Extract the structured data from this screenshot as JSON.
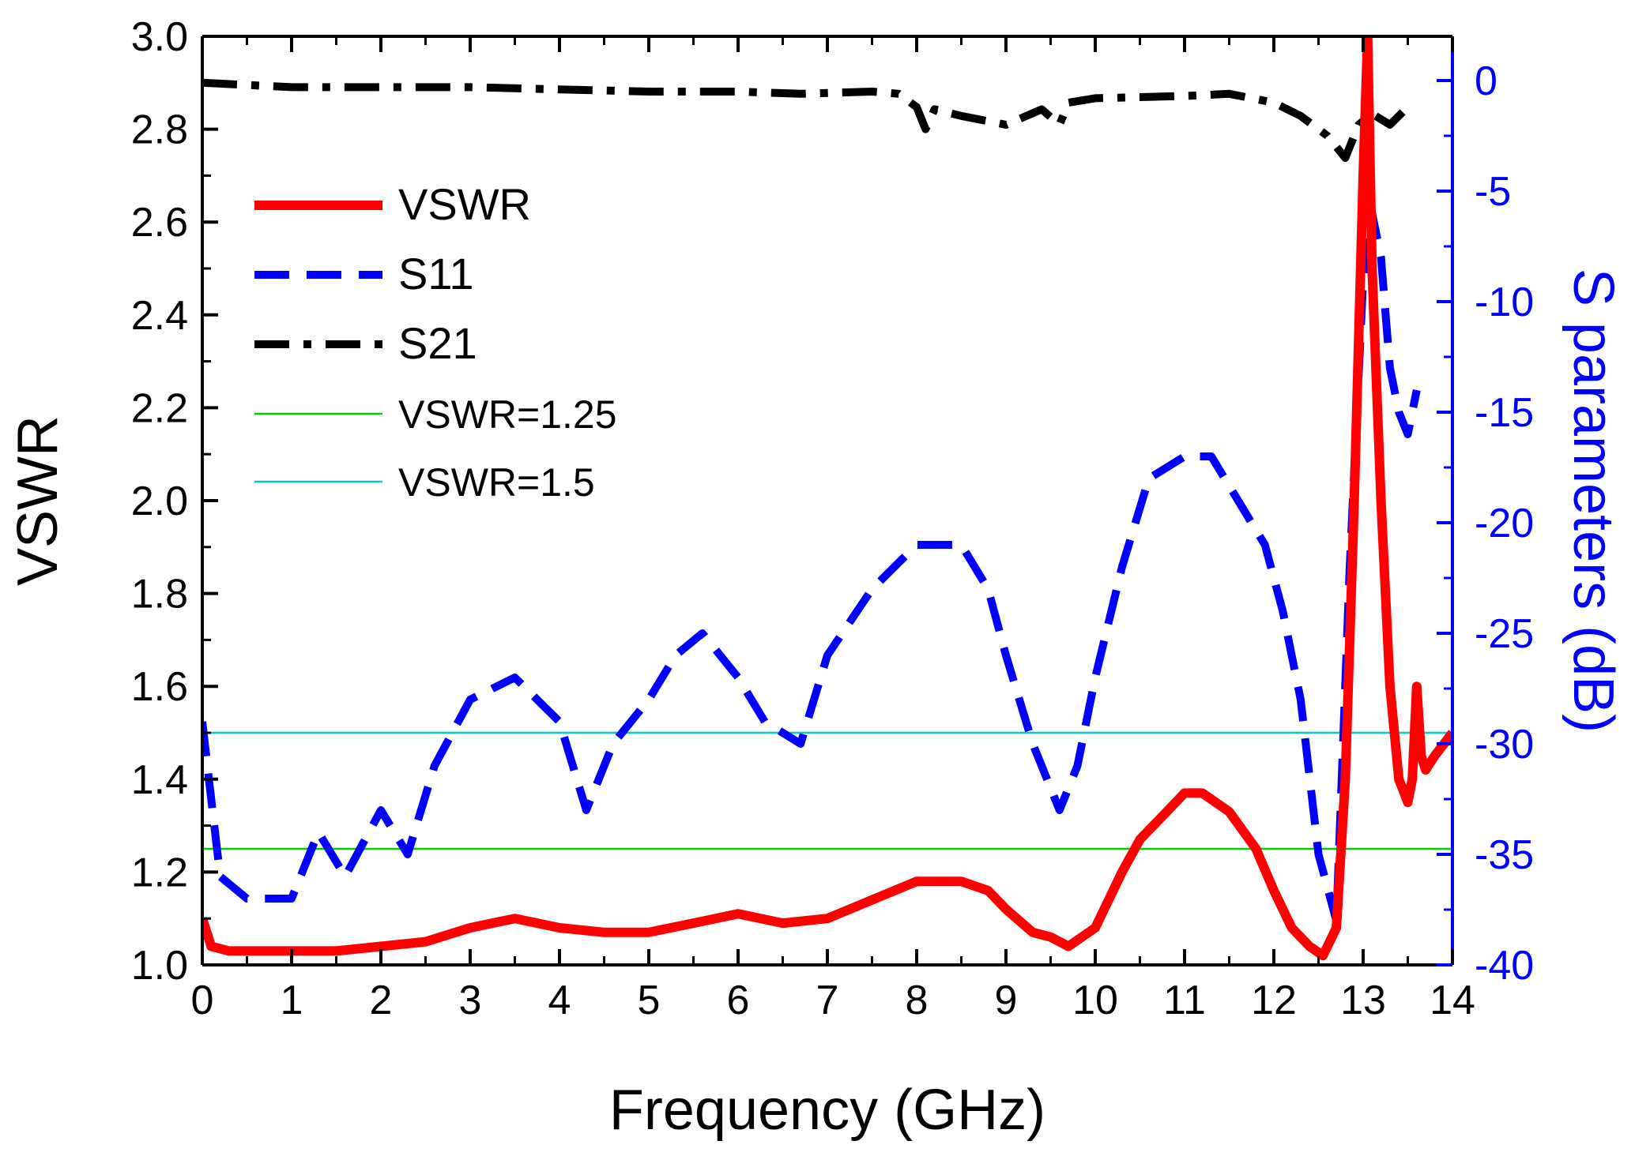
{
  "chart_data": {
    "type": "line",
    "title": "",
    "xlabel": "Frequency (GHz)",
    "ylabel": "VSWR",
    "ylabel_right": "S parameters (dB)",
    "xlim": [
      0,
      14
    ],
    "ylim": [
      1.0,
      3.0
    ],
    "ylim_right": [
      -40,
      2
    ],
    "x_ticks": [
      "0",
      "1",
      "2",
      "3",
      "4",
      "5",
      "6",
      "7",
      "8",
      "9",
      "10",
      "11",
      "12",
      "13",
      "14"
    ],
    "y_ticks": [
      "1.0",
      "1.2",
      "1.4",
      "1.6",
      "1.8",
      "2.0",
      "2.2",
      "2.4",
      "2.6",
      "2.8",
      "3.0"
    ],
    "y_right_ticks": [
      "0",
      "-5",
      "-10",
      "-15",
      "-20",
      "-25",
      "-30",
      "-35",
      "-40"
    ],
    "grid": false,
    "legend_position": "top-left",
    "series": [
      {
        "name": "VSWR",
        "axis": "left",
        "color": "#ff0000",
        "style": "solid",
        "x": [
          0,
          0.1,
          0.3,
          0.5,
          1.0,
          1.5,
          2.0,
          2.5,
          3.0,
          3.5,
          4.0,
          4.5,
          5.0,
          5.5,
          6.0,
          6.5,
          7.0,
          7.5,
          8.0,
          8.5,
          8.8,
          9.0,
          9.3,
          9.5,
          9.7,
          10.0,
          10.3,
          10.5,
          10.8,
          11.0,
          11.2,
          11.5,
          11.8,
          12.0,
          12.2,
          12.4,
          12.55,
          12.7,
          12.8,
          12.9,
          13.0,
          13.05,
          13.1,
          13.2,
          13.3,
          13.4,
          13.5,
          13.55,
          13.6,
          13.65,
          13.7,
          13.8,
          14.0
        ],
        "y": [
          1.1,
          1.04,
          1.03,
          1.03,
          1.03,
          1.03,
          1.04,
          1.05,
          1.08,
          1.1,
          1.08,
          1.07,
          1.07,
          1.09,
          1.11,
          1.09,
          1.1,
          1.14,
          1.18,
          1.18,
          1.16,
          1.12,
          1.07,
          1.06,
          1.04,
          1.08,
          1.2,
          1.27,
          1.33,
          1.37,
          1.37,
          1.33,
          1.25,
          1.16,
          1.08,
          1.04,
          1.02,
          1.08,
          1.4,
          2.0,
          2.7,
          3.0,
          2.5,
          2.0,
          1.6,
          1.4,
          1.35,
          1.4,
          1.6,
          1.45,
          1.42,
          1.45,
          1.5
        ]
      },
      {
        "name": "S11",
        "axis": "right",
        "color": "#0000ff",
        "style": "dashed",
        "x": [
          0,
          0.2,
          0.5,
          1.0,
          1.3,
          1.6,
          2.0,
          2.3,
          2.6,
          3.0,
          3.5,
          4.0,
          4.3,
          4.6,
          5.0,
          5.3,
          5.6,
          6.0,
          6.3,
          6.7,
          7.0,
          7.5,
          8.0,
          8.5,
          8.8,
          9.0,
          9.3,
          9.6,
          9.8,
          10.0,
          10.3,
          10.6,
          11.0,
          11.3,
          11.6,
          11.9,
          12.1,
          12.3,
          12.5,
          12.7,
          12.85,
          13.0,
          13.1,
          13.2,
          13.3,
          13.4,
          13.5,
          13.6
        ],
        "y": [
          -29,
          -36,
          -37,
          -37,
          -34,
          -36,
          -33,
          -35,
          -31,
          -28,
          -27,
          -29,
          -33,
          -30,
          -28,
          -26,
          -25,
          -27,
          -29,
          -30,
          -26,
          -23,
          -21,
          -21,
          -23,
          -26,
          -30,
          -33,
          -31,
          -27,
          -22,
          -18,
          -17,
          -17,
          -19,
          -21,
          -24,
          -28,
          -35,
          -38,
          -22,
          -9,
          -6,
          -8,
          -13,
          -15,
          -16,
          -14
        ]
      },
      {
        "name": "S21",
        "axis": "right",
        "color": "#000000",
        "style": "dash-dot",
        "x": [
          0,
          0.5,
          1.0,
          2.0,
          3.0,
          4.0,
          5.0,
          6.0,
          6.7,
          7.5,
          7.8,
          8.0,
          8.1,
          8.2,
          8.5,
          9.0,
          9.4,
          9.6,
          9.7,
          10.0,
          11.0,
          11.5,
          12.0,
          12.3,
          12.6,
          12.8,
          12.95,
          13.1,
          13.3,
          13.5
        ],
        "y": [
          -0.1,
          -0.2,
          -0.3,
          -0.3,
          -0.3,
          -0.4,
          -0.5,
          -0.5,
          -0.6,
          -0.5,
          -0.6,
          -1.2,
          -2.2,
          -1.3,
          -1.6,
          -2.0,
          -1.3,
          -2.0,
          -1.0,
          -0.8,
          -0.7,
          -0.6,
          -1.0,
          -1.6,
          -2.5,
          -3.5,
          -2.0,
          -1.5,
          -2.0,
          -1.2
        ]
      },
      {
        "name": "VSWR=1.25",
        "axis": "left",
        "color": "#00cc00",
        "style": "thin",
        "x": [
          0,
          14
        ],
        "y": [
          1.25,
          1.25
        ]
      },
      {
        "name": "VSWR=1.5",
        "axis": "left",
        "color": "#00cccc",
        "style": "thin",
        "x": [
          0,
          14
        ],
        "y": [
          1.5,
          1.5
        ]
      }
    ]
  }
}
